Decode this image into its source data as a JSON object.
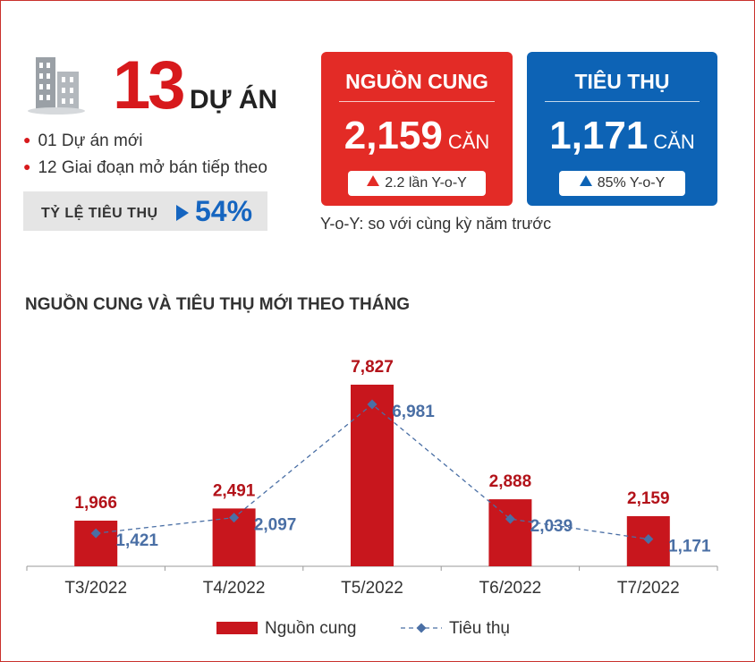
{
  "projects": {
    "count": "13",
    "unit": "DỰ ÁN"
  },
  "bullets": [
    "01 Dự án mới",
    "12 Giai đoạn mở bán tiếp theo"
  ],
  "absorption": {
    "label": "TỶ LỆ TIÊU THỤ",
    "value": "54%"
  },
  "supply_card": {
    "title": "NGUỒN CUNG",
    "value": "2,159",
    "unit": "CĂN",
    "change": "2.2 lần Y-o-Y",
    "color": "#e32b26"
  },
  "sales_card": {
    "title": "TIÊU THỤ",
    "value": "1,171",
    "unit": "CĂN",
    "change": "85% Y-o-Y",
    "color": "#0d63b5"
  },
  "yoy_note": "Y-o-Y: so với cùng kỳ năm trước",
  "chart_title": "NGUỒN CUNG VÀ TIÊU THỤ MỚI THEO THÁNG",
  "icons": {
    "building": "building-icon"
  },
  "chart_data": {
    "type": "bar",
    "categories": [
      "T3/2022",
      "T4/2022",
      "T5/2022",
      "T6/2022",
      "T7/2022"
    ],
    "series": [
      {
        "name": "Nguồn cung",
        "type": "bar",
        "values": [
          1966,
          2491,
          7827,
          2888,
          2159
        ],
        "labels": [
          "1,966",
          "2,491",
          "7,827",
          "2,888",
          "2,159"
        ],
        "color": "#c8161d"
      },
      {
        "name": "Tiêu thụ",
        "type": "line",
        "values": [
          1421,
          2097,
          6981,
          2039,
          1171
        ],
        "labels": [
          "1,421",
          "2,097",
          "6,981",
          "2,039",
          "1,171"
        ],
        "color": "#4a6fa5"
      }
    ],
    "ylim": [
      0,
      8000
    ],
    "grid": false,
    "legend": "bottom"
  }
}
